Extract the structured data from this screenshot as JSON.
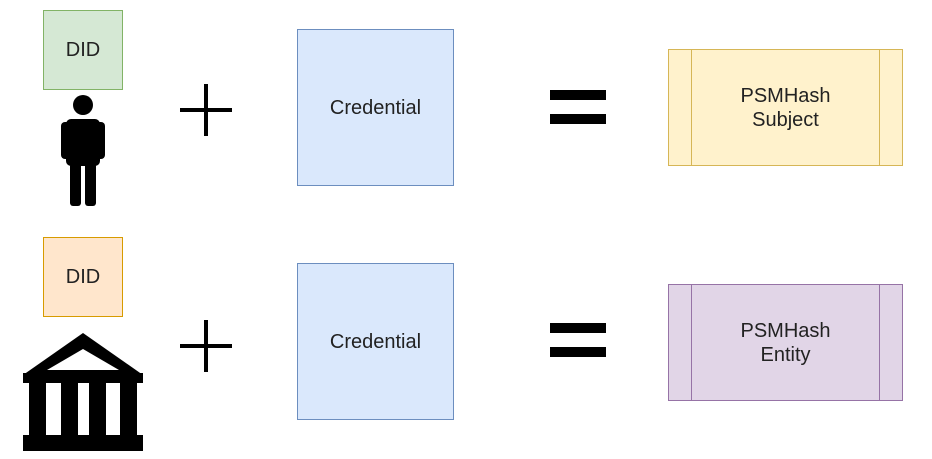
{
  "rows": [
    {
      "did_label": "DID",
      "identity_icon": "person-icon",
      "operator_plus": "+",
      "credential_label": "Credential",
      "operator_equals": "=",
      "result": {
        "line1": "PSMHash",
        "line2": "Subject"
      },
      "colors": {
        "did_fill": "#d5e8d4",
        "did_stroke": "#82b366",
        "result_fill": "#fff2cc",
        "result_stroke": "#d6b656"
      }
    },
    {
      "did_label": "DID",
      "identity_icon": "bank-icon",
      "operator_plus": "+",
      "credential_label": "Credential",
      "operator_equals": "=",
      "result": {
        "line1": "PSMHash",
        "line2": "Entity"
      },
      "colors": {
        "did_fill": "#ffe6cc",
        "did_stroke": "#d79b00",
        "result_fill": "#e1d5e7",
        "result_stroke": "#9673a6"
      }
    }
  ],
  "colors": {
    "credential_fill": "#dae8fc",
    "credential_stroke": "#6c8ebf",
    "icon_color": "#000000"
  }
}
